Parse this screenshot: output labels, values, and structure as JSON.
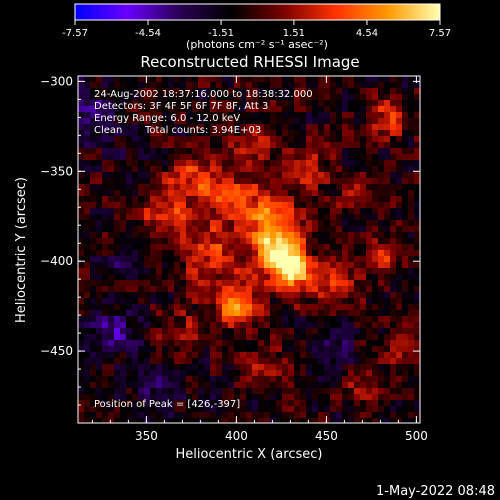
{
  "chart_data": {
    "type": "heatmap",
    "title": "Reconstructed RHESSI Image",
    "xlabel": "Heliocentric X (arcsec)",
    "ylabel": "Heliocentric Y (arcsec)",
    "xlim": [
      312,
      502
    ],
    "ylim": [
      -490,
      -297
    ],
    "x_ticks": [
      "350",
      "400",
      "450",
      "500"
    ],
    "y_ticks": [
      "-300",
      "-350",
      "-400",
      "-450"
    ],
    "colorbar": {
      "min": -7.57,
      "max": 7.57,
      "tick_labels": [
        "-7.57",
        "-4.54",
        "-1.51",
        "1.51",
        "4.54",
        "7.57"
      ],
      "unit_label": "(photons cm⁻² s⁻¹ asec⁻²)",
      "colormap": [
        "#0000ff",
        "#6a00ff",
        "#2a0055",
        "#000000",
        "#7a0000",
        "#ff3300",
        "#ff9900",
        "#ffffb0"
      ]
    },
    "annotations": {
      "time": "24-Aug-2002 18:37:16.000 to 18:38:32.000",
      "detectors": "Detectors: 3F 4F 5F 6F 7F 8F, Att 3",
      "energy": "Energy Range: 6.0 - 12.0 keV",
      "method": "Clean",
      "counts": "Total counts: 3.94E+03",
      "peak": "Position of Peak = [426,-397]"
    },
    "blobs": [
      {
        "x": 426,
        "y": -397,
        "amp": 7.4,
        "sigma": 9
      },
      {
        "x": 418,
        "y": -378,
        "amp": 5.2,
        "sigma": 12
      },
      {
        "x": 400,
        "y": -425,
        "amp": 6.0,
        "sigma": 8
      },
      {
        "x": 385,
        "y": -395,
        "amp": 3.8,
        "sigma": 13
      },
      {
        "x": 375,
        "y": -355,
        "amp": 3.6,
        "sigma": 9
      },
      {
        "x": 395,
        "y": -360,
        "amp": 3.2,
        "sigma": 10
      },
      {
        "x": 360,
        "y": -375,
        "amp": 3.0,
        "sigma": 11
      },
      {
        "x": 410,
        "y": -333,
        "amp": 3.0,
        "sigma": 8
      },
      {
        "x": 433,
        "y": -410,
        "amp": 4.4,
        "sigma": 9
      },
      {
        "x": 457,
        "y": -410,
        "amp": 3.0,
        "sigma": 8
      },
      {
        "x": 480,
        "y": -397,
        "amp": 3.6,
        "sigma": 7
      },
      {
        "x": 483,
        "y": -320,
        "amp": 3.4,
        "sigma": 8
      },
      {
        "x": 440,
        "y": -350,
        "amp": 2.4,
        "sigma": 9
      },
      {
        "x": 465,
        "y": -365,
        "amp": 2.4,
        "sigma": 8
      },
      {
        "x": 370,
        "y": -440,
        "amp": 2.0,
        "sigma": 10
      },
      {
        "x": 415,
        "y": -455,
        "amp": 2.0,
        "sigma": 9
      },
      {
        "x": 490,
        "y": -450,
        "amp": 2.2,
        "sigma": 8
      },
      {
        "x": 470,
        "y": -470,
        "amp": 1.8,
        "sigma": 9
      },
      {
        "x": 330,
        "y": -440,
        "amp": -2.8,
        "sigma": 10
      },
      {
        "x": 322,
        "y": -320,
        "amp": -2.0,
        "sigma": 10
      },
      {
        "x": 455,
        "y": -450,
        "amp": -1.8,
        "sigma": 10
      },
      {
        "x": 355,
        "y": -475,
        "amp": -1.6,
        "sigma": 10
      },
      {
        "x": 340,
        "y": -400,
        "amp": -1.6,
        "sigma": 9
      }
    ]
  },
  "footer": {
    "date": "1-May-2022 08:48"
  }
}
